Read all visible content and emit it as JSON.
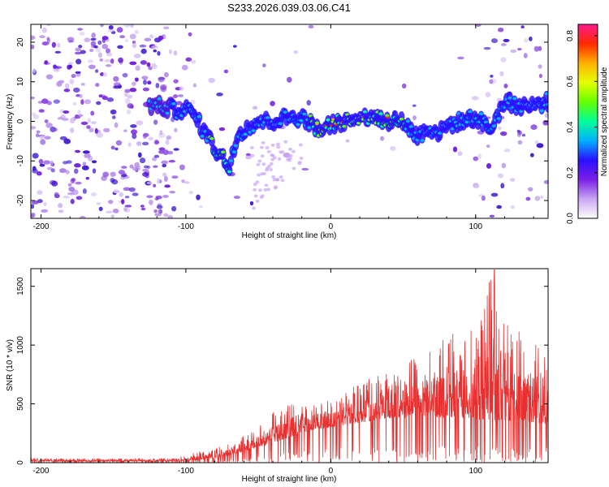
{
  "title": "S233.2026.039.03.06.C41",
  "chart_data": [
    {
      "type": "heatmap",
      "xlabel": "Height of straight line (km)",
      "ylabel": "Frequency (Hz)",
      "xlim": [
        -207,
        150
      ],
      "ylim": [
        -24.5,
        24.5
      ],
      "xticks": [
        -200,
        -100,
        0,
        100
      ],
      "yticks": [
        -20,
        -10,
        0,
        10,
        20
      ],
      "colorbar": {
        "label": "Normalized spectral amplitude",
        "range": [
          0,
          0.85
        ],
        "ticks": [
          "0.0",
          "0.2",
          "0.4",
          "0.6",
          "0.8"
        ],
        "colormap": "rainbow",
        "colors": [
          "#ffffff",
          "#c9a6f2",
          "#7a1fe6",
          "#2a10ff",
          "#00b0ff",
          "#00ff9a",
          "#66ff00",
          "#e6ff00",
          "#ffb000",
          "#ff2a00",
          "#ff1a8c"
        ]
      },
      "ridge": {
        "x": [
          -120,
          -110,
          -100,
          -95,
          -90,
          -85,
          -80,
          -75,
          -72,
          -70,
          -65,
          -60,
          -55,
          -50,
          -40,
          -30,
          -20,
          -15,
          -10,
          0,
          10,
          20,
          30,
          40,
          50,
          55,
          60,
          65,
          70,
          75,
          80,
          90,
          100,
          110,
          120,
          130,
          140,
          150
        ],
        "y": [
          4,
          3,
          3,
          2,
          -1,
          -4,
          -7,
          -9,
          -11,
          -11,
          -4,
          -2,
          -1,
          0,
          0,
          1,
          1,
          0,
          -2,
          -1,
          0,
          1,
          1,
          0,
          0,
          -2,
          -4,
          -2,
          -2,
          -3,
          -1,
          0,
          1,
          -2,
          5,
          4,
          4,
          5
        ]
      }
    },
    {
      "type": "line",
      "xlabel": "Height of straight line (km)",
      "ylabel": "SNR (10 * v/v)",
      "xlim": [
        -207,
        150
      ],
      "ylim": [
        0,
        1650
      ],
      "xticks": [
        -200,
        -100,
        0,
        100
      ],
      "yticks": [
        0,
        500,
        1000,
        1500
      ],
      "color": "#e83030",
      "envelope": {
        "x": [
          -207,
          -150,
          -110,
          -100,
          -90,
          -80,
          -70,
          -60,
          -50,
          -40,
          -30,
          -20,
          -10,
          0,
          10,
          20,
          30,
          40,
          50,
          60,
          70,
          80,
          90,
          100,
          110,
          120,
          130,
          140,
          150
        ],
        "y": [
          40,
          35,
          40,
          60,
          100,
          130,
          160,
          230,
          300,
          430,
          500,
          560,
          540,
          520,
          600,
          700,
          760,
          820,
          860,
          920,
          990,
          1080,
          1130,
          1140,
          1650,
          1180,
          1160,
          1120,
          900
        ]
      },
      "baseline": {
        "x": [
          -207,
          -100,
          -90,
          -80,
          -70,
          -60,
          -50,
          -40,
          -30,
          -20,
          -10,
          0,
          10,
          20,
          30,
          40,
          50,
          60,
          70,
          80,
          90,
          100,
          110,
          120,
          130,
          140,
          150
        ],
        "y": [
          10,
          15,
          25,
          40,
          60,
          90,
          130,
          170,
          210,
          250,
          280,
          300,
          320,
          340,
          360,
          380,
          380,
          390,
          390,
          380,
          380,
          370,
          360,
          360,
          350,
          340,
          330
        ]
      }
    }
  ]
}
